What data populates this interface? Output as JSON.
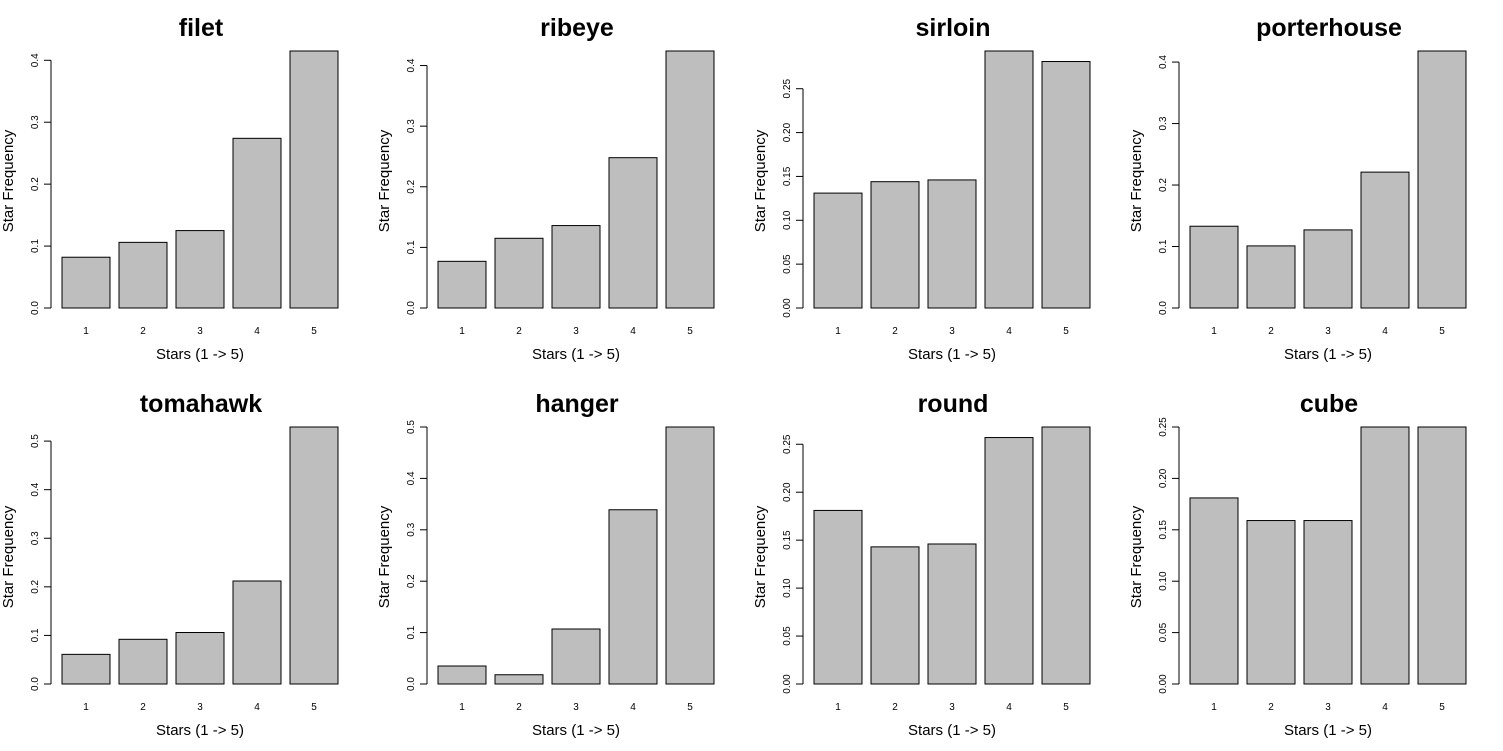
{
  "chart_data": [
    {
      "type": "bar",
      "title": "filet",
      "xlabel": "Stars (1 -> 5)",
      "ylabel": "Star Frequency",
      "categories": [
        "1",
        "2",
        "3",
        "4",
        "5"
      ],
      "values": [
        0.082,
        0.106,
        0.125,
        0.274,
        0.415
      ],
      "yticks": [
        "0.0",
        "0.1",
        "0.2",
        "0.3",
        "0.4"
      ],
      "ylim": [
        0,
        0.415
      ]
    },
    {
      "type": "bar",
      "title": "ribeye",
      "xlabel": "Stars (1 -> 5)",
      "ylabel": "Star Frequency",
      "categories": [
        "1",
        "2",
        "3",
        "4",
        "5"
      ],
      "values": [
        0.077,
        0.115,
        0.136,
        0.248,
        0.424
      ],
      "yticks": [
        "0.0",
        "0.1",
        "0.2",
        "0.3",
        "0.4"
      ],
      "ylim": [
        0,
        0.424
      ]
    },
    {
      "type": "bar",
      "title": "sirloin",
      "xlabel": "Stars (1 -> 5)",
      "ylabel": "Star Frequency",
      "categories": [
        "1",
        "2",
        "3",
        "4",
        "5"
      ],
      "values": [
        0.131,
        0.144,
        0.146,
        0.293,
        0.281
      ],
      "yticks": [
        "0.00",
        "0.05",
        "0.10",
        "0.15",
        "0.20",
        "0.25"
      ],
      "ylim": [
        0,
        0.293
      ]
    },
    {
      "type": "bar",
      "title": "porterhouse",
      "xlabel": "Stars (1 -> 5)",
      "ylabel": "Star Frequency",
      "categories": [
        "1",
        "2",
        "3",
        "4",
        "5"
      ],
      "values": [
        0.133,
        0.101,
        0.127,
        0.221,
        0.418
      ],
      "yticks": [
        "0.0",
        "0.1",
        "0.2",
        "0.3",
        "0.4"
      ],
      "ylim": [
        0,
        0.418
      ]
    },
    {
      "type": "bar",
      "title": "tomahawk",
      "xlabel": "Stars (1 -> 5)",
      "ylabel": "Star Frequency",
      "categories": [
        "1",
        "2",
        "3",
        "4",
        "5"
      ],
      "values": [
        0.061,
        0.092,
        0.106,
        0.212,
        0.529
      ],
      "yticks": [
        "0.0",
        "0.1",
        "0.2",
        "0.3",
        "0.4",
        "0.5"
      ],
      "ylim": [
        0,
        0.529
      ]
    },
    {
      "type": "bar",
      "title": "hanger",
      "xlabel": "Stars (1 -> 5)",
      "ylabel": "Star Frequency",
      "categories": [
        "1",
        "2",
        "3",
        "4",
        "5"
      ],
      "values": [
        0.035,
        0.018,
        0.107,
        0.339,
        0.5
      ],
      "yticks": [
        "0.0",
        "0.1",
        "0.2",
        "0.3",
        "0.4",
        "0.5"
      ],
      "ylim": [
        0,
        0.5
      ]
    },
    {
      "type": "bar",
      "title": "round",
      "xlabel": "Stars (1 -> 5)",
      "ylabel": "Star Frequency",
      "categories": [
        "1",
        "2",
        "3",
        "4",
        "5"
      ],
      "values": [
        0.181,
        0.143,
        0.146,
        0.257,
        0.268
      ],
      "yticks": [
        "0.00",
        "0.05",
        "0.10",
        "0.15",
        "0.20",
        "0.25"
      ],
      "ylim": [
        0,
        0.268
      ]
    },
    {
      "type": "bar",
      "title": "cube",
      "xlabel": "Stars (1 -> 5)",
      "ylabel": "Star Frequency",
      "categories": [
        "1",
        "2",
        "3",
        "4",
        "5"
      ],
      "values": [
        0.181,
        0.159,
        0.159,
        0.25,
        0.25
      ],
      "yticks": [
        "0.00",
        "0.05",
        "0.10",
        "0.15",
        "0.20",
        "0.25"
      ],
      "ylim": [
        0,
        0.25
      ]
    }
  ]
}
